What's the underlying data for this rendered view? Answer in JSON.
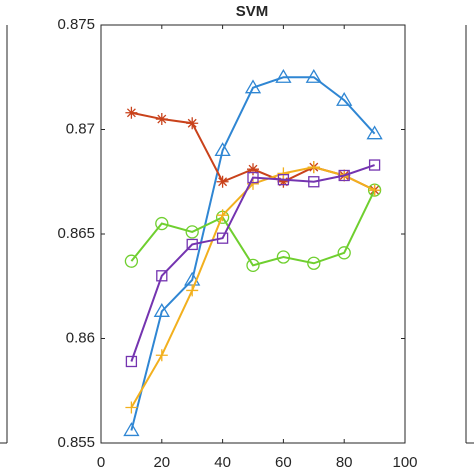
{
  "chart_data": {
    "type": "line",
    "title": "SVM",
    "x": [
      10,
      20,
      30,
      40,
      50,
      60,
      70,
      80,
      90
    ],
    "xlim": [
      0,
      100
    ],
    "xticks": [
      0,
      20,
      40,
      60,
      80,
      100
    ],
    "ylim": [
      0.855,
      0.875
    ],
    "yticks": [
      0.855,
      0.86,
      0.865,
      0.87,
      0.875
    ],
    "series": [
      {
        "color": "#2f86d3",
        "marker": "triangle",
        "values": [
          0.8556,
          0.8613,
          0.8628,
          0.869,
          0.872,
          0.8725,
          0.8725,
          0.8714,
          0.8698
        ]
      },
      {
        "color": "#c9421b",
        "marker": "star",
        "values": [
          0.8708,
          0.8705,
          0.8703,
          0.8675,
          0.8681,
          0.8675,
          0.8682,
          0.8678,
          0.8671
        ]
      },
      {
        "color": "#6fcf2f",
        "marker": "circle",
        "values": [
          0.8637,
          0.8655,
          0.8651,
          0.8658,
          0.8635,
          0.8639,
          0.8636,
          0.8641,
          0.8671
        ]
      },
      {
        "color": "#f2b01e",
        "marker": "plus",
        "values": [
          0.8567,
          0.8592,
          0.8623,
          0.8659,
          0.8674,
          0.8679,
          0.8682,
          0.8678,
          0.8671
        ]
      },
      {
        "color": "#7434b0",
        "marker": "square",
        "values": [
          0.8589,
          0.863,
          0.8645,
          0.8648,
          0.8677,
          0.8676,
          0.8675,
          0.8678,
          0.8683
        ]
      }
    ]
  }
}
